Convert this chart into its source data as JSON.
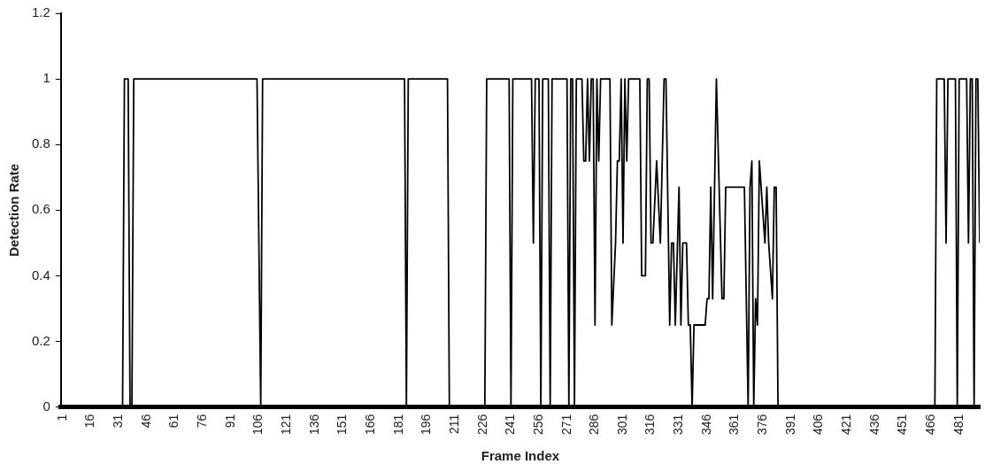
{
  "chart_data": {
    "type": "line",
    "xlabel": "Frame Index",
    "ylabel": "Detection Rate",
    "xlim": [
      0,
      492
    ],
    "xticks": [
      1,
      16,
      31,
      46,
      61,
      76,
      91,
      106,
      121,
      136,
      151,
      166,
      181,
      196,
      211,
      226,
      241,
      256,
      271,
      286,
      301,
      316,
      331,
      346,
      361,
      376,
      391,
      406,
      421,
      436,
      451,
      466,
      481
    ],
    "ylim": [
      0,
      1.2
    ],
    "yticks": [
      0,
      0.2,
      0.4,
      0.6,
      0.8,
      1,
      1.2
    ],
    "grid": false,
    "legend": false,
    "marker": "none",
    "line_style": "solid",
    "series": [
      {
        "color": "#000000",
        "x": [
          1,
          33,
          34,
          36,
          37,
          38,
          39,
          105,
          107,
          108,
          184,
          185,
          186,
          207,
          208,
          227,
          228,
          240,
          241,
          242,
          252,
          253,
          254,
          256,
          257,
          258,
          261,
          262,
          263,
          271,
          272,
          273,
          274,
          275,
          276,
          279,
          280,
          281,
          282,
          283,
          284,
          285,
          286,
          287,
          288,
          289,
          294,
          295,
          297,
          298,
          299,
          300,
          301,
          302,
          303,
          304,
          310,
          311,
          313,
          314,
          315,
          316,
          317,
          319,
          321,
          323,
          324,
          326,
          327,
          328,
          329,
          331,
          332,
          333,
          335,
          336,
          337,
          338,
          339,
          345,
          346,
          347,
          348,
          349,
          351,
          354,
          355,
          356,
          366,
          368,
          369,
          370,
          371,
          372,
          373,
          374,
          377,
          378,
          379,
          381,
          382,
          383,
          384,
          468,
          469,
          473,
          474,
          475,
          479,
          480,
          481,
          485,
          486,
          487,
          488,
          489,
          490,
          491,
          492
        ],
        "values": [
          0,
          0,
          1,
          1,
          0,
          0,
          1,
          1,
          0,
          1,
          1,
          0,
          1,
          1,
          0,
          0,
          1,
          1,
          0,
          1,
          1,
          0.5,
          1,
          1,
          0,
          1,
          1,
          0,
          1,
          1,
          0,
          1,
          1,
          0,
          1,
          1,
          0.75,
          0.75,
          1,
          0.75,
          1,
          1,
          0.25,
          1,
          0.75,
          1,
          1,
          0.25,
          0.5,
          0.75,
          0.75,
          1,
          0.5,
          1,
          0.75,
          1,
          1,
          0.4,
          0.4,
          1,
          1,
          0.5,
          0.5,
          0.75,
          0.5,
          1,
          1,
          0.25,
          0.5,
          0.5,
          0.25,
          0.67,
          0.25,
          0.5,
          0.5,
          0.25,
          0.25,
          0,
          0.25,
          0.25,
          0.33,
          0.33,
          0.67,
          0.33,
          1,
          0.33,
          0.33,
          0.67,
          0.67,
          0,
          0.67,
          0.75,
          0,
          0.33,
          0.25,
          0.75,
          0.5,
          0.67,
          0.5,
          0.33,
          0.67,
          0.67,
          0,
          0,
          1,
          1,
          0.5,
          1,
          1,
          0,
          1,
          1,
          0.5,
          1,
          1,
          0,
          1,
          1,
          0.5
        ]
      }
    ]
  }
}
